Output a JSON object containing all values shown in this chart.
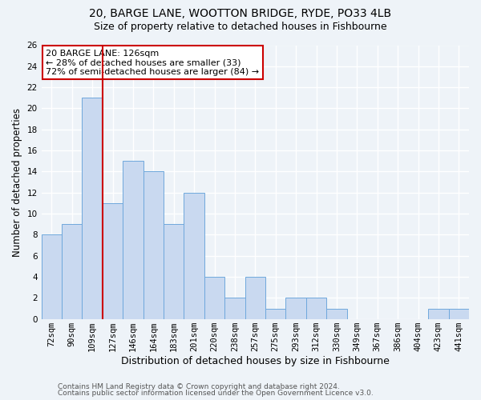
{
  "title1": "20, BARGE LANE, WOOTTON BRIDGE, RYDE, PO33 4LB",
  "title2": "Size of property relative to detached houses in Fishbourne",
  "xlabel": "Distribution of detached houses by size in Fishbourne",
  "ylabel": "Number of detached properties",
  "categories": [
    "72sqm",
    "90sqm",
    "109sqm",
    "127sqm",
    "146sqm",
    "164sqm",
    "183sqm",
    "201sqm",
    "220sqm",
    "238sqm",
    "257sqm",
    "275sqm",
    "293sqm",
    "312sqm",
    "330sqm",
    "349sqm",
    "367sqm",
    "386sqm",
    "404sqm",
    "423sqm",
    "441sqm"
  ],
  "values": [
    8,
    9,
    21,
    11,
    15,
    14,
    9,
    12,
    4,
    2,
    4,
    1,
    2,
    2,
    1,
    0,
    0,
    0,
    0,
    1,
    1
  ],
  "bar_color": "#c9d9f0",
  "bar_edge_color": "#6fa8dc",
  "vline_x_index": 2,
  "vline_color": "#cc0000",
  "annotation_text": "20 BARGE LANE: 126sqm\n← 28% of detached houses are smaller (33)\n72% of semi-detached houses are larger (84) →",
  "annotation_box_color": "white",
  "annotation_box_edge": "#cc0000",
  "ylim": [
    0,
    26
  ],
  "yticks": [
    0,
    2,
    4,
    6,
    8,
    10,
    12,
    14,
    16,
    18,
    20,
    22,
    24,
    26
  ],
  "footer1": "Contains HM Land Registry data © Crown copyright and database right 2024.",
  "footer2": "Contains public sector information licensed under the Open Government Licence v3.0.",
  "background_color": "#eef3f8",
  "grid_color": "white",
  "title1_fontsize": 10,
  "title2_fontsize": 9,
  "ylabel_fontsize": 8.5,
  "xlabel_fontsize": 9,
  "tick_fontsize": 7.5,
  "footer_fontsize": 6.5
}
